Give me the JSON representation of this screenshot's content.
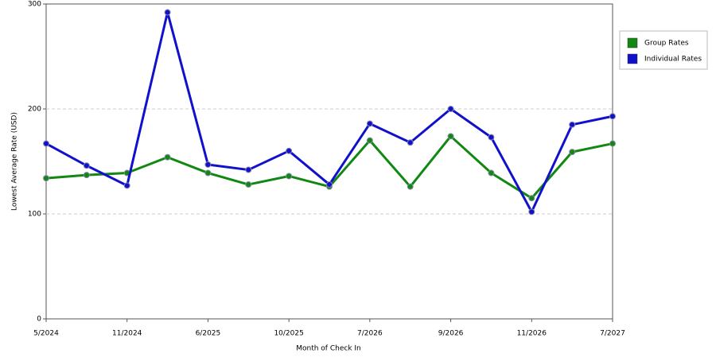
{
  "chart_data": {
    "type": "line",
    "x_label": "Month of Check In",
    "y_label": "Lowest Average Rate (USD)",
    "categories": [
      "5/2024",
      null,
      "11/2024",
      null,
      "6/2025",
      null,
      "10/2025",
      null,
      "7/2026",
      null,
      "9/2026",
      null,
      "11/2026",
      null,
      "7/2027"
    ],
    "series": [
      {
        "name": "Group Rates",
        "color": "#118811",
        "values": [
          134,
          137,
          139,
          154,
          139,
          128,
          136,
          126,
          170,
          126,
          174,
          139,
          115,
          159,
          167
        ]
      },
      {
        "name": "Individual Rates",
        "color": "#1111cc",
        "values": [
          167,
          146,
          127,
          292,
          147,
          142,
          160,
          128,
          186,
          168,
          200,
          173,
          102,
          185,
          193
        ]
      }
    ],
    "ylim": [
      0,
      300
    ],
    "yticks": [
      0,
      100,
      200,
      300
    ],
    "grid": true,
    "legend": "right"
  }
}
